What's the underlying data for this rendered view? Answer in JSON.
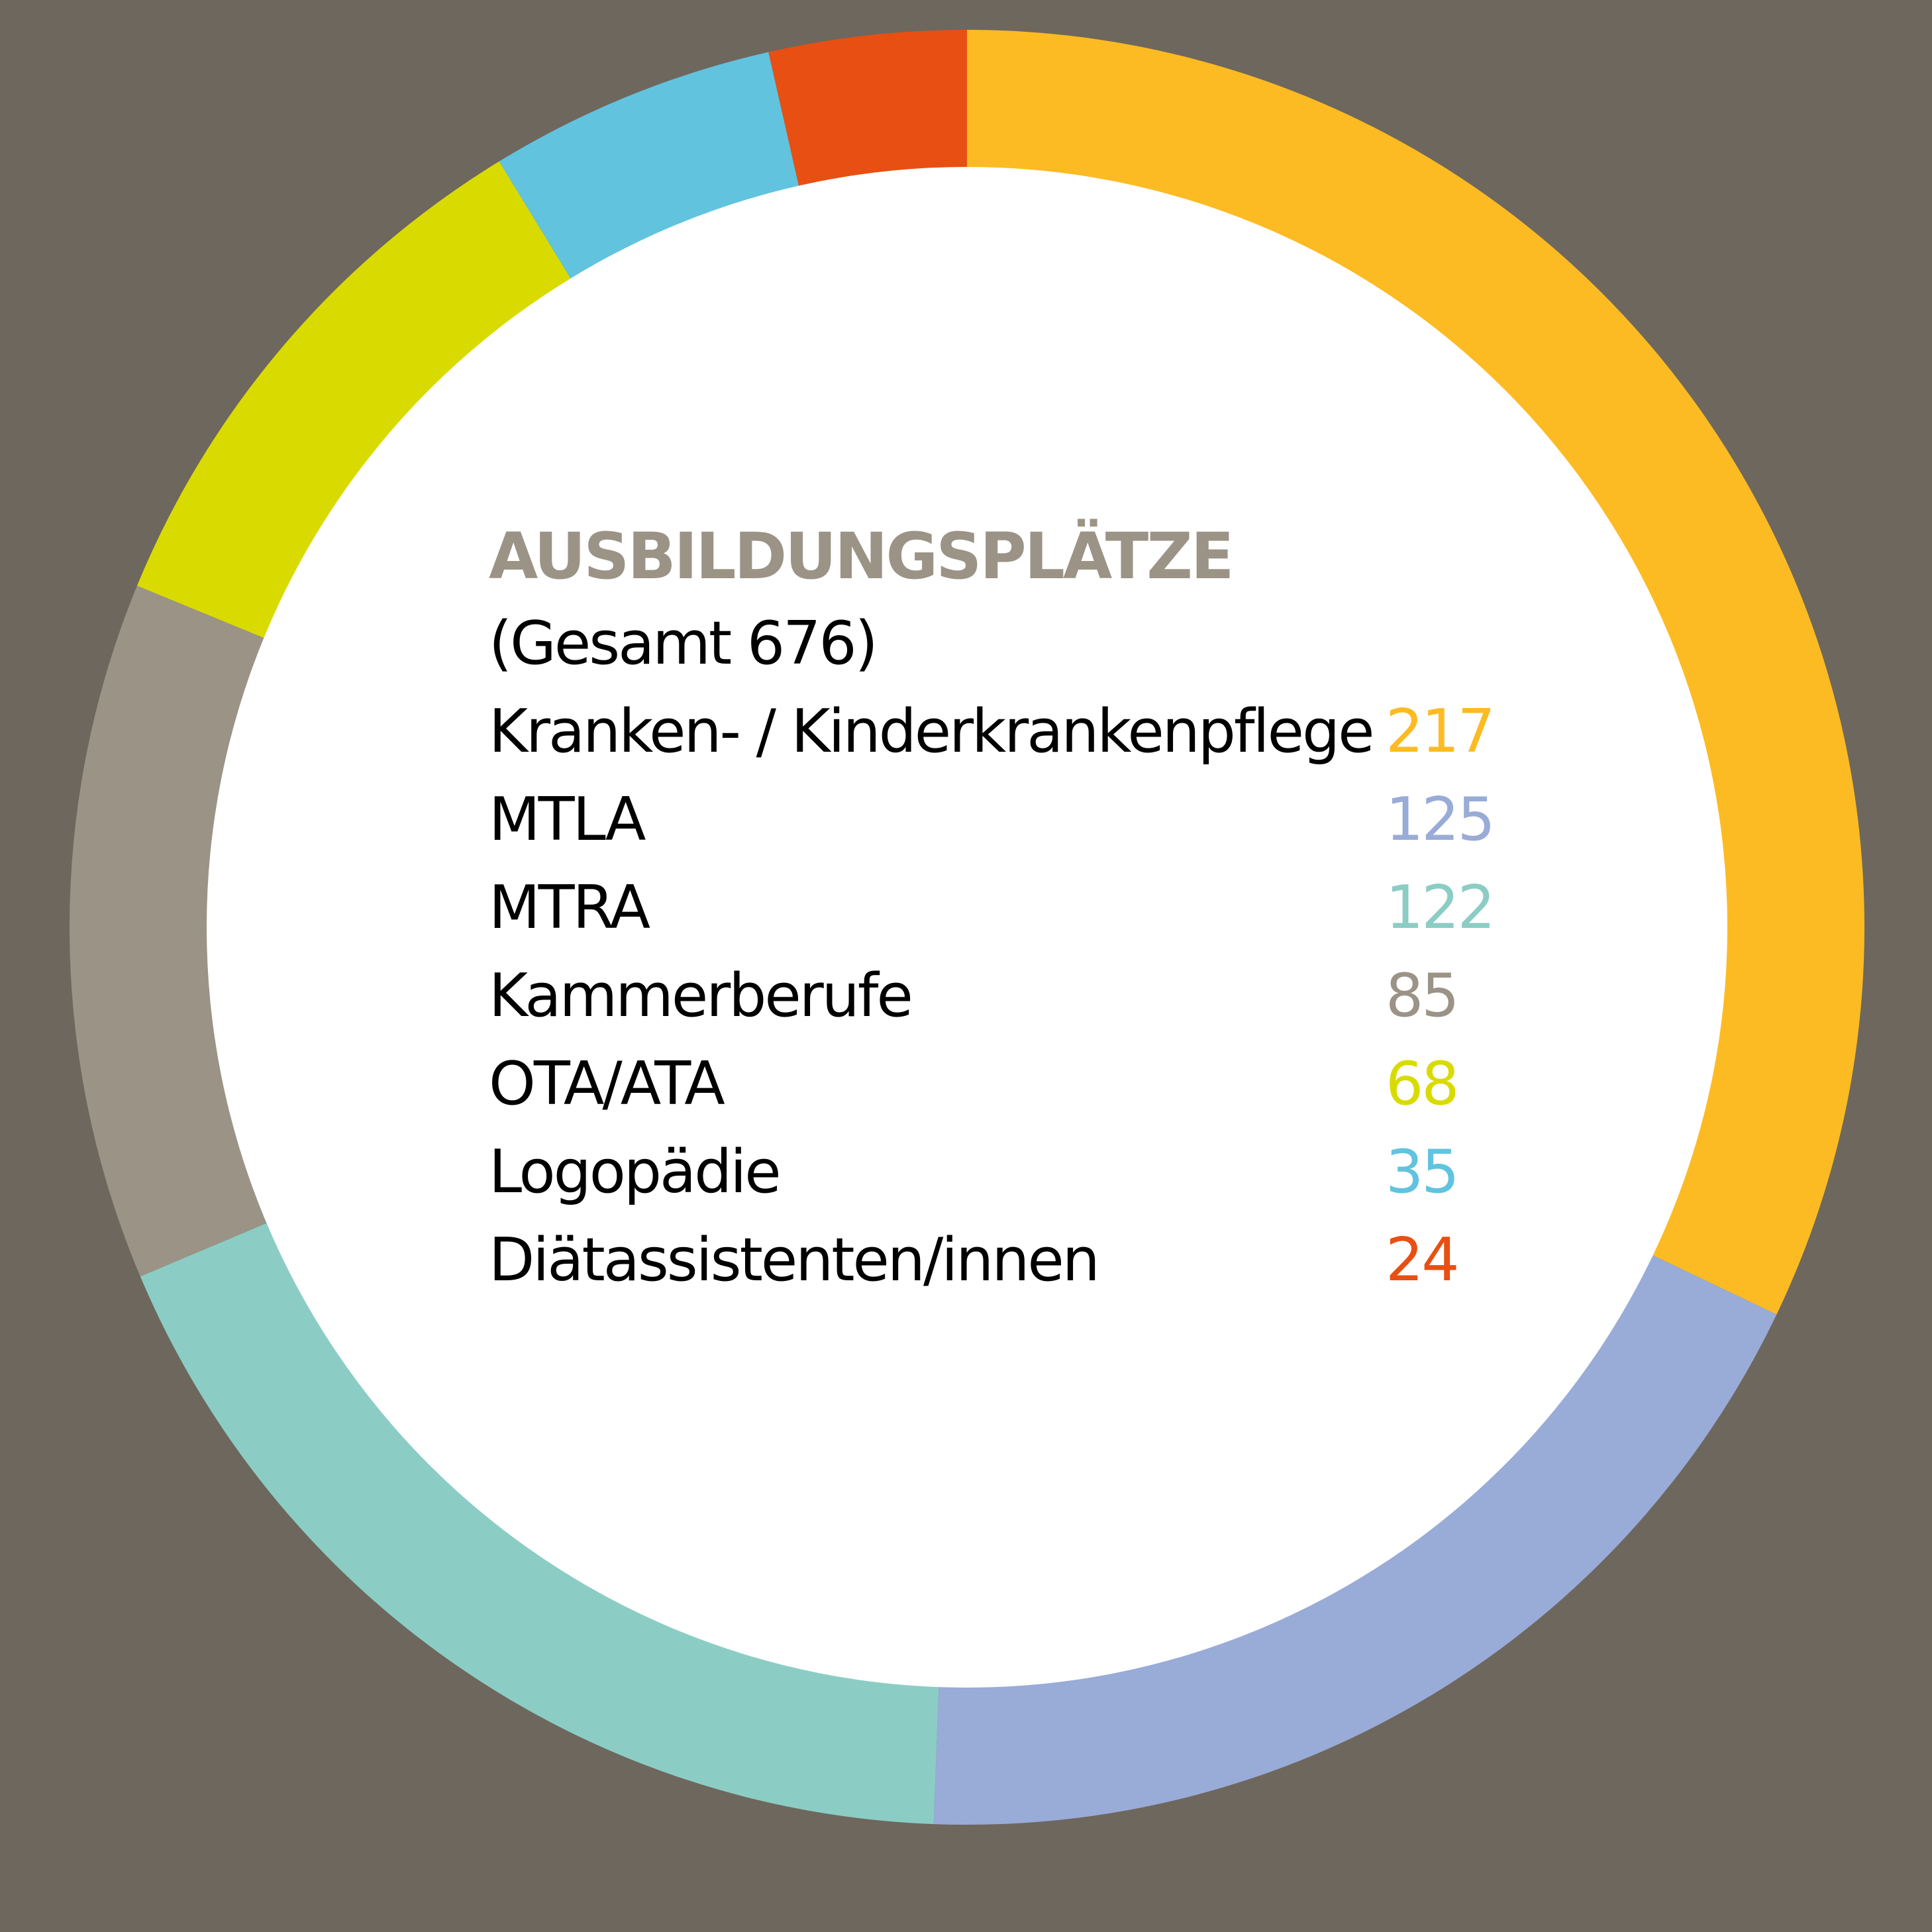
{
  "chart_data": {
    "type": "pie",
    "title": "AUSBILDUNGSPLÄTZE",
    "subtitle": "(Gesamt 676)",
    "title_color": "#9b9386",
    "background": "#6e675d",
    "inner_color": "#ffffff",
    "slices": [
      {
        "label": "Kranken- / Kinderkrankenpflege",
        "value": 217,
        "value_text": "217",
        "color": "#fcbb22"
      },
      {
        "label": "MTLA",
        "value": 125,
        "value_text": "125",
        "color": "#99abd7"
      },
      {
        "label": "MTRA",
        "value": 122,
        "value_text": "122",
        "color": "#8bcdc4"
      },
      {
        "label": "Kammerberufe",
        "value": 85,
        "value_text": "85",
        "color": "#9b9386"
      },
      {
        "label": "OTA/ATA",
        "value": 68,
        "value_text": "68",
        "color": "#d9db00"
      },
      {
        "label": "Logopädie",
        "value": 35,
        "value_text": "35",
        "color": "#61c3de"
      },
      {
        "label": "Diätassistenten/innen",
        "value": 24,
        "value_text": "24",
        "color": "#e84f12"
      }
    ]
  }
}
